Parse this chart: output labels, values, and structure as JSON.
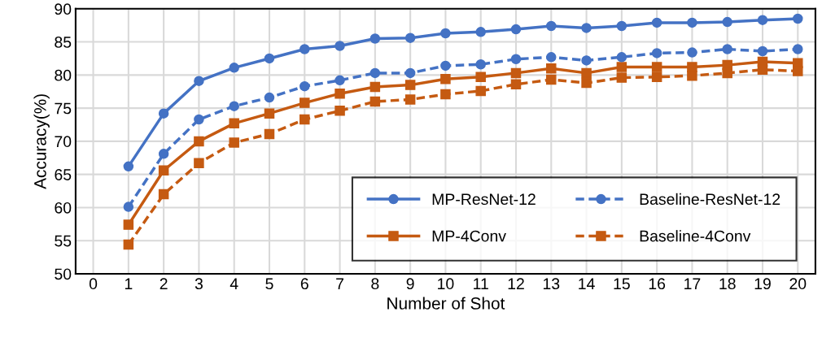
{
  "chart_data": {
    "type": "line",
    "xlabel": "Number of Shot",
    "ylabel": "Accuracy(%)",
    "x": [
      1,
      2,
      3,
      4,
      5,
      6,
      7,
      8,
      9,
      10,
      11,
      12,
      13,
      14,
      15,
      16,
      17,
      18,
      19,
      20
    ],
    "xlim": [
      -0.5,
      20.5
    ],
    "xticks": [
      0,
      1,
      2,
      3,
      4,
      5,
      6,
      7,
      8,
      9,
      10,
      11,
      12,
      13,
      14,
      15,
      16,
      17,
      18,
      19,
      20
    ],
    "ylim": [
      50,
      90
    ],
    "yticks": [
      50,
      55,
      60,
      65,
      70,
      75,
      80,
      85,
      90
    ],
    "grid": true,
    "legend": "bottom right",
    "series": [
      {
        "name": "MP-ResNet-12",
        "color": "#4472c4",
        "marker": "circle",
        "line_style": "solid",
        "values": [
          66.2,
          74.2,
          79.1,
          81.1,
          82.5,
          83.9,
          84.4,
          85.5,
          85.6,
          86.3,
          86.5,
          86.9,
          87.4,
          87.1,
          87.4,
          87.9,
          87.9,
          88.0,
          88.3,
          88.5
        ]
      },
      {
        "name": "MP-4Conv",
        "color": "#c55a11",
        "marker": "square",
        "line_style": "solid",
        "values": [
          57.4,
          65.6,
          70.0,
          72.7,
          74.2,
          75.8,
          77.2,
          78.2,
          78.5,
          79.4,
          79.7,
          80.3,
          81.0,
          80.3,
          81.2,
          81.2,
          81.2,
          81.5,
          82.0,
          81.8
        ]
      },
      {
        "name": "Baseline-ResNet-12",
        "color": "#4472c4",
        "marker": "circle",
        "line_style": "dashed",
        "values": [
          60.1,
          68.1,
          73.3,
          75.3,
          76.6,
          78.3,
          79.2,
          80.3,
          80.3,
          81.4,
          81.6,
          82.4,
          82.7,
          82.2,
          82.7,
          83.3,
          83.4,
          83.9,
          83.6,
          83.9
        ]
      },
      {
        "name": "Baseline-4Conv",
        "color": "#c55a11",
        "marker": "square",
        "line_style": "dashed",
        "values": [
          54.4,
          62.0,
          66.7,
          69.8,
          71.1,
          73.3,
          74.6,
          76.0,
          76.3,
          77.1,
          77.6,
          78.6,
          79.3,
          78.8,
          79.6,
          79.7,
          79.9,
          80.3,
          80.8,
          80.6
        ]
      }
    ]
  }
}
